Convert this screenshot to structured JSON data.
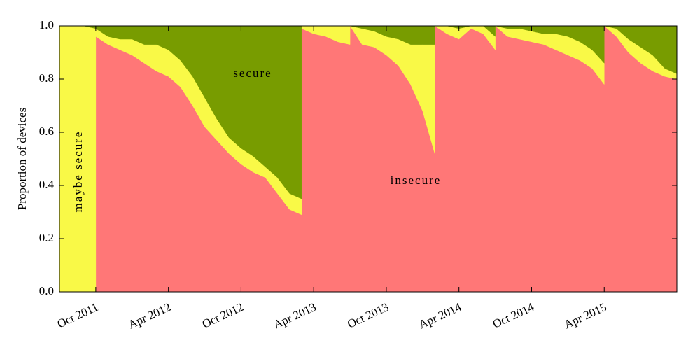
{
  "chart_data": {
    "type": "stacked_area",
    "ylabel": "Proportion of devices",
    "x": [
      "2011-07",
      "2011-08",
      "2011-09",
      "2011-10",
      "2011-10",
      "2011-11",
      "2011-12",
      "2012-01",
      "2012-02",
      "2012-03",
      "2012-04",
      "2012-05",
      "2012-06",
      "2012-07",
      "2012-08",
      "2012-09",
      "2012-10",
      "2012-11",
      "2012-12",
      "2013-01",
      "2013-02",
      "2013-03",
      "2013-03",
      "2013-04",
      "2013-05",
      "2013-06",
      "2013-07",
      "2013-07",
      "2013-08",
      "2013-09",
      "2013-10",
      "2013-11",
      "2013-12",
      "2014-01",
      "2014-02",
      "2014-02",
      "2014-03",
      "2014-04",
      "2014-05",
      "2014-06",
      "2014-07",
      "2014-07",
      "2014-08",
      "2014-09",
      "2014-10",
      "2014-11",
      "2014-12",
      "2015-01",
      "2015-02",
      "2015-03",
      "2015-04",
      "2015-04",
      "2015-05",
      "2015-06",
      "2015-07",
      "2015-08",
      "2015-09",
      "2015-10"
    ],
    "series": [
      {
        "name": "insecure",
        "color": "#ff7777",
        "values": [
          0,
          0,
          0,
          0,
          0.96,
          0.93,
          0.91,
          0.89,
          0.86,
          0.83,
          0.81,
          0.77,
          0.7,
          0.62,
          0.57,
          0.52,
          0.48,
          0.45,
          0.43,
          0.37,
          0.31,
          0.29,
          0.99,
          0.97,
          0.96,
          0.94,
          0.93,
          1,
          0.93,
          0.92,
          0.89,
          0.85,
          0.78,
          0.68,
          0.52,
          1,
          0.97,
          0.95,
          0.99,
          0.97,
          0.91,
          1,
          0.96,
          0.95,
          0.94,
          0.93,
          0.91,
          0.89,
          0.87,
          0.84,
          0.78,
          1,
          0.96,
          0.9,
          0.86,
          0.83,
          0.81,
          0.8
        ]
      },
      {
        "name": "maybe secure",
        "color": "#f9f947",
        "values": [
          1,
          1,
          1,
          0.99,
          0.03,
          0.03,
          0.04,
          0.06,
          0.07,
          0.1,
          0.1,
          0.1,
          0.11,
          0.11,
          0.08,
          0.06,
          0.06,
          0.06,
          0.04,
          0.06,
          0.06,
          0.06,
          0.01,
          0.03,
          0.04,
          0.06,
          0.07,
          0,
          0.06,
          0.06,
          0.07,
          0.1,
          0.15,
          0.25,
          0.41,
          0,
          0.03,
          0.04,
          0.01,
          0.03,
          0.05,
          0,
          0.03,
          0.04,
          0.04,
          0.04,
          0.06,
          0.07,
          0.07,
          0.07,
          0.08,
          0,
          0.03,
          0.05,
          0.06,
          0.06,
          0.03,
          0.02
        ]
      },
      {
        "name": "secure",
        "color": "#789c00",
        "values": [
          0,
          0,
          0,
          0.01,
          0.01,
          0.04,
          0.05,
          0.05,
          0.07,
          0.07,
          0.09,
          0.13,
          0.19,
          0.27,
          0.35,
          0.42,
          0.46,
          0.49,
          0.53,
          0.57,
          0.63,
          0.65,
          0,
          0,
          0,
          0,
          0,
          0,
          0.01,
          0.02,
          0.04,
          0.05,
          0.07,
          0.07,
          0.07,
          0,
          0,
          0.01,
          0,
          0,
          0.04,
          0,
          0.01,
          0.01,
          0.02,
          0.03,
          0.03,
          0.04,
          0.06,
          0.09,
          0.14,
          0,
          0.01,
          0.05,
          0.08,
          0.11,
          0.16,
          0.18
        ]
      }
    ],
    "xlim": [
      "2011-07",
      "2015-10"
    ],
    "xticks": [
      {
        "value": "2011-10",
        "label": "Oct 2011"
      },
      {
        "value": "2012-04",
        "label": "Apr 2012"
      },
      {
        "value": "2012-10",
        "label": "Oct 2012"
      },
      {
        "value": "2013-04",
        "label": "Apr 2013"
      },
      {
        "value": "2013-10",
        "label": "Oct 2013"
      },
      {
        "value": "2014-04",
        "label": "Apr 2014"
      },
      {
        "value": "2014-10",
        "label": "Oct 2014"
      },
      {
        "value": "2015-04",
        "label": "Apr 2015"
      }
    ],
    "ylim": [
      0,
      1
    ],
    "yticks": [
      {
        "value": 0,
        "label": "0.0"
      },
      0.2,
      0.4,
      0.6,
      0.8,
      {
        "value": 1,
        "label": "1.0"
      }
    ]
  }
}
